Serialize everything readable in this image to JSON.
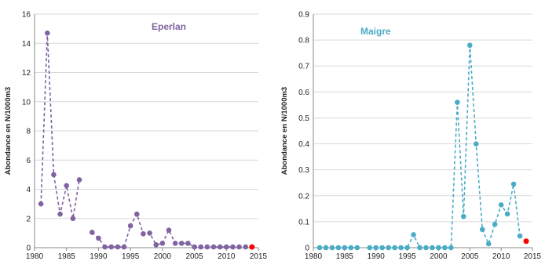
{
  "chart_data": [
    {
      "type": "line",
      "title": "Eperlan",
      "title_color": "#8064A2",
      "ylabel": "Abondance en N/1000m3",
      "xlim": [
        1980,
        2015
      ],
      "ylim": [
        0,
        16
      ],
      "xticks": [
        "1980",
        "1985",
        "1990",
        "1995",
        "2000",
        "2005",
        "2010",
        "2015"
      ],
      "yticks": [
        "0",
        "2",
        "4",
        "6",
        "8",
        "10",
        "12",
        "14",
        "16"
      ],
      "grid": true,
      "line_style": "dashed",
      "color": "#8064A2",
      "highlight_color": "#FF0000",
      "segments": [
        {
          "x": [
            1981,
            1982,
            1983,
            1984,
            1985,
            1986,
            1987
          ],
          "y": [
            3.0,
            14.7,
            5.0,
            2.3,
            4.25,
            2.0,
            4.65
          ]
        },
        {
          "x": [
            1989,
            1990,
            1991,
            1992,
            1993,
            1994,
            1995,
            1996,
            1997,
            1998,
            1999,
            2000,
            2001,
            2002,
            2003,
            2004,
            2005,
            2006,
            2007,
            2008,
            2009,
            2010,
            2011,
            2012,
            2013
          ],
          "y": [
            1.05,
            0.65,
            0.05,
            0.05,
            0.05,
            0.05,
            1.5,
            2.3,
            0.95,
            1.0,
            0.2,
            0.3,
            1.2,
            0.3,
            0.3,
            0.3,
            0.05,
            0.05,
            0.05,
            0.05,
            0.05,
            0.05,
            0.05,
            0.05,
            0.05
          ]
        }
      ],
      "highlight": {
        "x": 2014,
        "y": 0.05
      }
    },
    {
      "type": "line",
      "title": "Maigre",
      "title_color": "#4BACC6",
      "ylabel": "Abondance en N/1000m3",
      "xlim": [
        1980,
        2015
      ],
      "ylim": [
        0,
        0.9
      ],
      "xticks": [
        "1980",
        "1985",
        "1990",
        "1995",
        "2000",
        "2005",
        "2010",
        "2015"
      ],
      "yticks": [
        "0",
        "0.1",
        "0.2",
        "0.3",
        "0.4",
        "0.5",
        "0.6",
        "0.7",
        "0.8",
        "0.9"
      ],
      "grid": true,
      "line_style": "dashed",
      "color": "#4BACC6",
      "highlight_color": "#FF0000",
      "segments": [
        {
          "x": [
            1981,
            1982,
            1983,
            1984,
            1985,
            1986,
            1987
          ],
          "y": [
            0,
            0,
            0,
            0,
            0,
            0,
            0
          ]
        },
        {
          "x": [
            1989,
            1990,
            1991,
            1992,
            1993,
            1994,
            1995,
            1996,
            1997,
            1998,
            1999,
            2000,
            2001,
            2002,
            2003,
            2004,
            2005,
            2006,
            2007,
            2008,
            2009,
            2010,
            2011,
            2012,
            2013
          ],
          "y": [
            0,
            0,
            0,
            0,
            0,
            0,
            0,
            0.05,
            0,
            0,
            0,
            0,
            0,
            0,
            0.56,
            0.12,
            0.78,
            0.4,
            0.07,
            0.015,
            0.09,
            0.165,
            0.13,
            0.245,
            0.045
          ]
        }
      ],
      "highlight": {
        "x": 2014,
        "y": 0.025
      }
    }
  ]
}
